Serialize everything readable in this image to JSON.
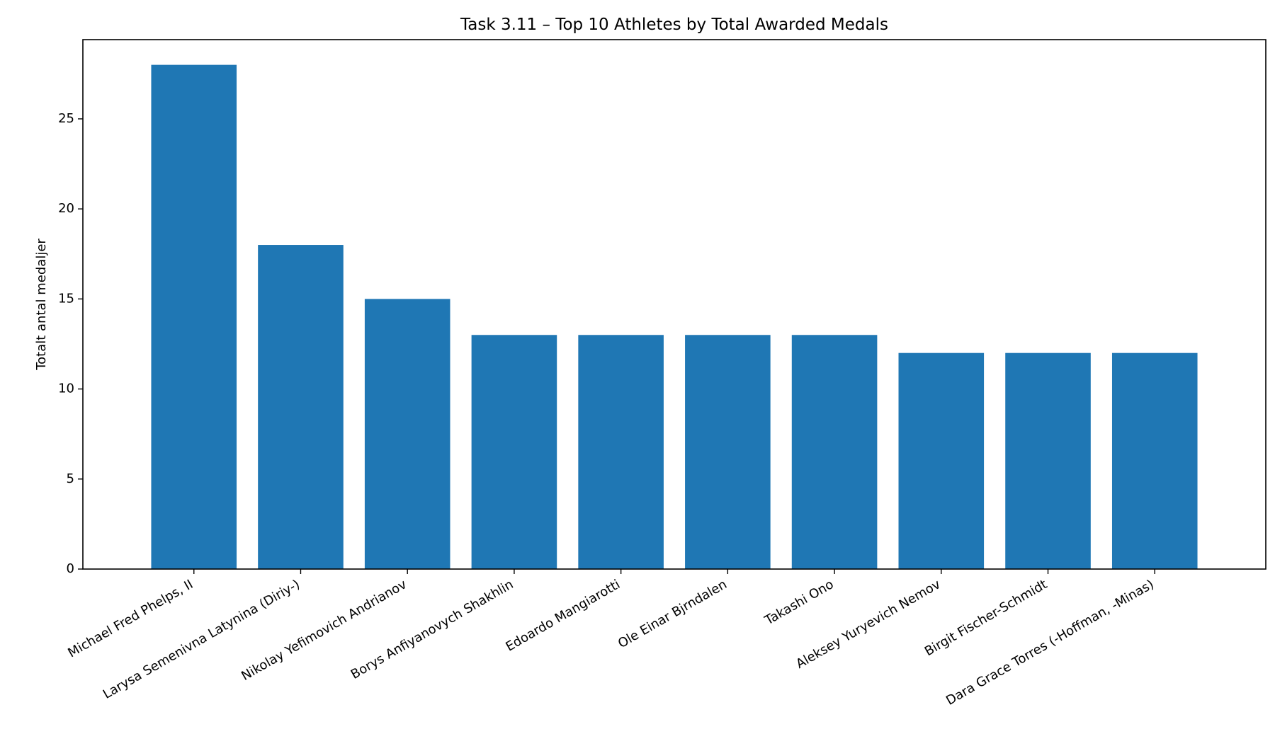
{
  "chart_data": {
    "type": "bar",
    "title": "Task 3.11 – Top 10 Athletes by Total Awarded Medals",
    "xlabel": "",
    "ylabel": "Totalt antal medaljer",
    "categories": [
      "Michael Fred Phelps, II",
      "Larysa Semenivna Latynina (Diriy-)",
      "Nikolay Yefimovich Andrianov",
      "Borys Anfiyanovych Shakhlin",
      "Edoardo Mangiarotti",
      "Ole Einar Bjrndalen",
      "Takashi Ono",
      "Aleksey Yuryevich Nemov",
      "Birgit Fischer-Schmidt",
      "Dara Grace Torres (-Hoffman, -Minas)"
    ],
    "values": [
      28,
      18,
      15,
      13,
      13,
      13,
      13,
      12,
      12,
      12
    ],
    "ylim": [
      0,
      29.4
    ],
    "yticks": [
      0,
      5,
      10,
      15,
      20,
      25
    ],
    "grid": false,
    "bar_color": "#1f77b4",
    "axis_color": "#000000"
  }
}
